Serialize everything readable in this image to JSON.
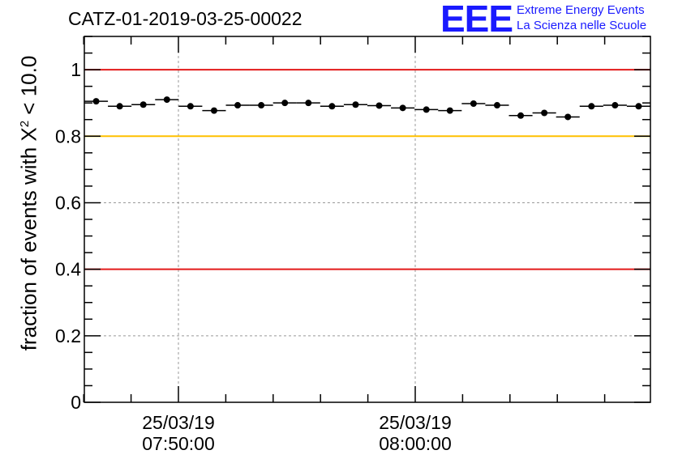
{
  "title": "CATZ-01-2019-03-25-00022",
  "logo": {
    "mark": "EEE",
    "line1": "Extreme Energy Events",
    "line2": "La Scienza nelle Scuole"
  },
  "ylabel": {
    "prefix": "fraction of events with X",
    "exponent": "2",
    "suffix": " < 10.0"
  },
  "colors": {
    "reference_red": "#e31a1a",
    "reference_yellow": "#ffc000",
    "points": "#000000",
    "grid": "#999999"
  },
  "chart_data": {
    "type": "scatter",
    "ylim": [
      0,
      1.1
    ],
    "yticks": [
      0,
      0.2,
      0.4,
      0.6,
      0.8,
      1
    ],
    "ytick_labels": [
      "0",
      "0.2",
      "0.4",
      "0.6",
      "0.8",
      "1"
    ],
    "xtick_labels": [
      [
        "25/03/19",
        "07:50:00"
      ],
      [
        "25/03/19",
        "08:00:00"
      ]
    ],
    "grid": true,
    "reference_lines": [
      {
        "y": 1.0,
        "color": "red"
      },
      {
        "y": 0.8,
        "color": "yellow"
      },
      {
        "y": 0.4,
        "color": "red"
      }
    ],
    "points": [
      0.905,
      0.89,
      0.895,
      0.91,
      0.89,
      0.877,
      0.893,
      0.893,
      0.9,
      0.9,
      0.89,
      0.895,
      0.892,
      0.885,
      0.88,
      0.877,
      0.898,
      0.893,
      0.862,
      0.87,
      0.858,
      0.89,
      0.893,
      0.89
    ]
  }
}
